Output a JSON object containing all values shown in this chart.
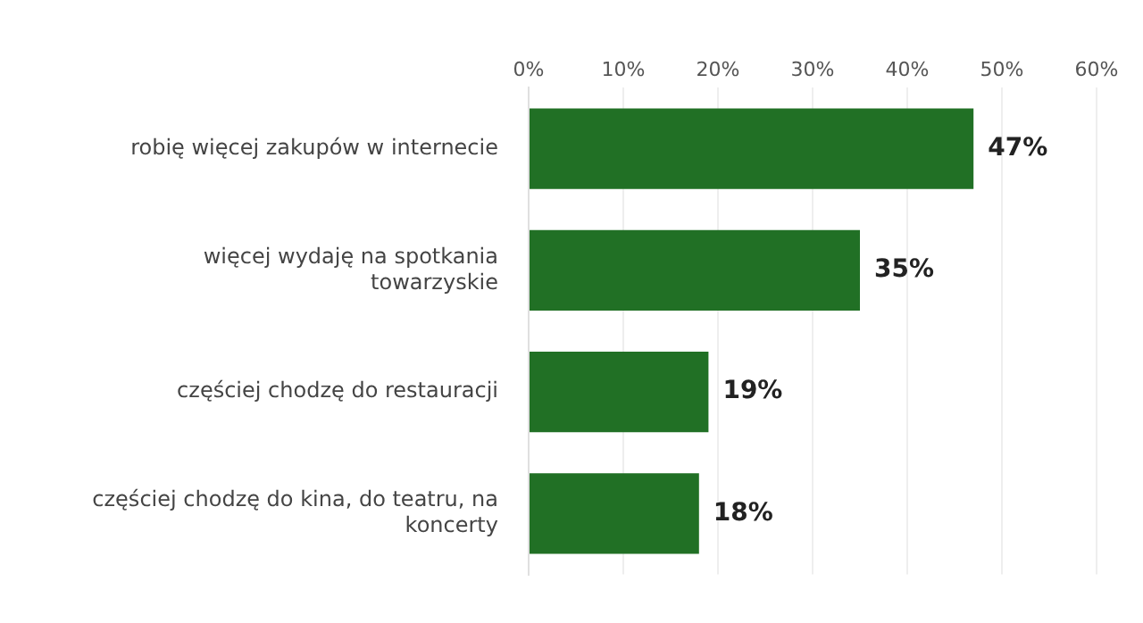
{
  "chart_data": {
    "type": "bar",
    "orientation": "horizontal",
    "categories": [
      "robię więcej zakupów w internecie",
      "więcej wydaję na spotkania towarzyskie",
      "częściej chodzę do restauracji",
      "częściej chodzę do kina, do teatru, na koncerty"
    ],
    "values": [
      47,
      35,
      19,
      18
    ],
    "value_labels": [
      "47%",
      "35%",
      "19%",
      "18%"
    ],
    "color": "#217025",
    "xlim": [
      0,
      60
    ],
    "xticks": [
      {
        "value": 0,
        "label": "0%"
      },
      {
        "value": 10,
        "label": "10%"
      },
      {
        "value": 20,
        "label": "20%"
      },
      {
        "value": 30,
        "label": "30%"
      },
      {
        "value": 40,
        "label": "40%"
      },
      {
        "value": 50,
        "label": "50%"
      },
      {
        "value": 60,
        "label": "60%"
      }
    ],
    "grid": "x",
    "legend": false
  }
}
